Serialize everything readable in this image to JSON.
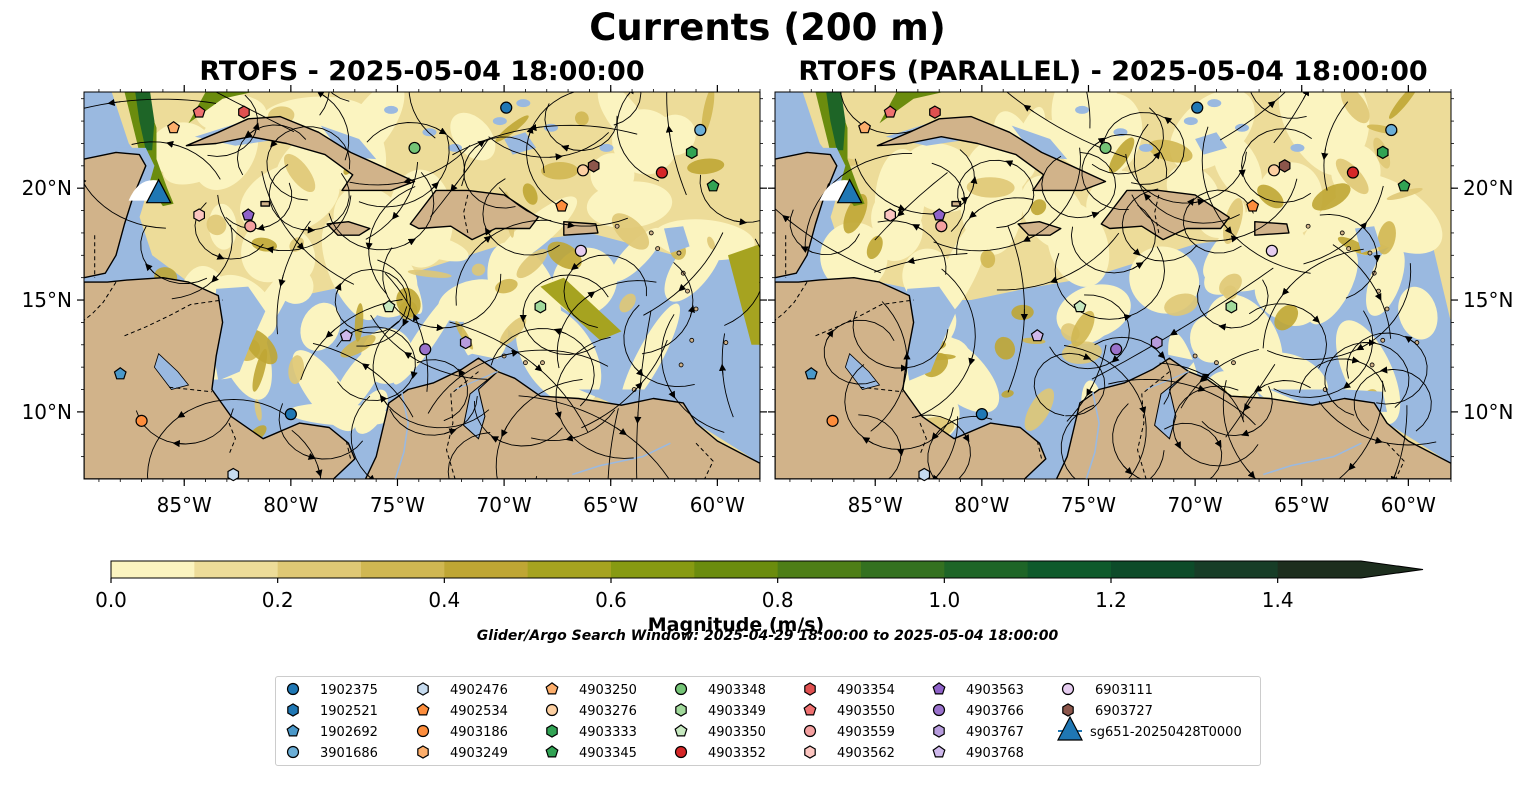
{
  "title": "Currents (200 m)",
  "panels": [
    {
      "title": "RTOFS - 2025-05-04 18:00:00"
    },
    {
      "title": "RTOFS (PARALLEL) - 2025-05-04 18:00:00"
    }
  ],
  "axes": {
    "x_ticks": [
      "85°W",
      "80°W",
      "75°W",
      "70°W",
      "65°W",
      "60°W"
    ],
    "x_tick_values": [
      -85,
      -80,
      -75,
      -70,
      -65,
      -60
    ],
    "y_ticks": [
      "20°N",
      "15°N",
      "10°N"
    ],
    "y_tick_values": [
      20,
      15,
      10
    ],
    "lon_range": [
      -89.7,
      -58.0
    ],
    "lat_range": [
      7.0,
      24.3
    ]
  },
  "colorbar": {
    "label": "Magnitude (m/s)",
    "tick_labels": [
      "0.0",
      "0.2",
      "0.4",
      "0.6",
      "0.8",
      "1.0",
      "1.2",
      "1.4"
    ],
    "range": [
      0,
      1.5
    ],
    "extend": "max",
    "colors": [
      "#fbf4c0",
      "#eddc99",
      "#dfc875",
      "#d0b752",
      "#bfa634",
      "#a6a320",
      "#879a12",
      "#6b8c0e",
      "#4e7e17",
      "#347120",
      "#1e6527",
      "#0e5a2b",
      "#0d4b29",
      "#173d27",
      "#1d2e1e"
    ]
  },
  "note": "Glider/Argo Search Window: 2025-04-29 18:00:00 to 2025-05-04 18:00:00",
  "colors": {
    "land": "#d1b38a",
    "ocean": "#9ab9e0"
  },
  "chart_data": {
    "type": "scatter",
    "series": [
      {
        "name": "1902375",
        "color": "#1f77b4",
        "marker": "circle",
        "points": [
          [
            -69.9,
            23.6
          ],
          [
            -80.0,
            9.9
          ]
        ]
      },
      {
        "name": "1902521",
        "color": "#1f77b4",
        "marker": "hexagon",
        "points": []
      },
      {
        "name": "1902692",
        "color": "#4a98c9",
        "marker": "pentagon",
        "points": [
          [
            -88.0,
            11.7
          ]
        ]
      },
      {
        "name": "3901686",
        "color": "#6baed6",
        "marker": "circle",
        "points": [
          [
            -60.8,
            22.6
          ]
        ]
      },
      {
        "name": "4902476",
        "color": "#c6dbef",
        "marker": "hexagon",
        "points": [
          [
            -82.7,
            7.2
          ]
        ]
      },
      {
        "name": "4902534",
        "color": "#fd8d3c",
        "marker": "pentagon",
        "points": [
          [
            -67.3,
            19.2
          ]
        ]
      },
      {
        "name": "4903186",
        "color": "#fd8d3c",
        "marker": "circle",
        "points": [
          [
            -87.0,
            9.6
          ]
        ]
      },
      {
        "name": "4903249",
        "color": "#fdae6b",
        "marker": "hexagon",
        "points": []
      },
      {
        "name": "4903250",
        "color": "#fdae6b",
        "marker": "pentagon",
        "points": [
          [
            -85.5,
            22.7
          ]
        ]
      },
      {
        "name": "4903276",
        "color": "#fdd0a2",
        "marker": "circle",
        "points": [
          [
            -66.3,
            20.8
          ]
        ]
      },
      {
        "name": "4903333",
        "color": "#31a354",
        "marker": "hexagon",
        "points": [
          [
            -61.2,
            21.6
          ]
        ]
      },
      {
        "name": "4903345",
        "color": "#31a354",
        "marker": "pentagon",
        "points": [
          [
            -60.2,
            20.1
          ]
        ]
      },
      {
        "name": "4903348",
        "color": "#74c476",
        "marker": "circle",
        "points": [
          [
            -74.2,
            21.8
          ]
        ]
      },
      {
        "name": "4903349",
        "color": "#a1d99b",
        "marker": "hexagon",
        "points": [
          [
            -68.3,
            14.7
          ]
        ]
      },
      {
        "name": "4903350",
        "color": "#c7e9c0",
        "marker": "pentagon",
        "points": [
          [
            -75.4,
            14.7
          ]
        ]
      },
      {
        "name": "4903352",
        "color": "#d62728",
        "marker": "circle",
        "points": [
          [
            -62.6,
            20.7
          ]
        ]
      },
      {
        "name": "4903354",
        "color": "#e05050",
        "marker": "hexagon",
        "points": [
          [
            -82.2,
            23.4
          ]
        ]
      },
      {
        "name": "4903550",
        "color": "#ef7070",
        "marker": "pentagon",
        "points": [
          [
            -84.3,
            23.4
          ]
        ]
      },
      {
        "name": "4903559",
        "color": "#f4a0a0",
        "marker": "circle",
        "points": [
          [
            -81.9,
            18.3
          ]
        ]
      },
      {
        "name": "4903562",
        "color": "#fcc5c0",
        "marker": "hexagon",
        "points": [
          [
            -84.3,
            18.8
          ]
        ]
      },
      {
        "name": "4903563",
        "color": "#8f62c9",
        "marker": "pentagon",
        "points": [
          [
            -82.0,
            18.8
          ]
        ]
      },
      {
        "name": "4903766",
        "color": "#9a72cc",
        "marker": "circle",
        "points": [
          [
            -73.7,
            12.8
          ]
        ]
      },
      {
        "name": "4903767",
        "color": "#b79cdd",
        "marker": "hexagon",
        "points": [
          [
            -71.8,
            13.1
          ]
        ]
      },
      {
        "name": "4903768",
        "color": "#cfb9ec",
        "marker": "pentagon",
        "points": [
          [
            -77.4,
            13.4
          ]
        ]
      },
      {
        "name": "6903111",
        "color": "#e6cdf0",
        "marker": "circle",
        "points": [
          [
            -66.4,
            17.2
          ]
        ]
      },
      {
        "name": "6903727",
        "color": "#8c564b",
        "marker": "hexagon",
        "points": [
          [
            -65.8,
            21.0
          ]
        ]
      },
      {
        "name": "sg651-20250428T0000",
        "color": "#1f77b4",
        "marker": "triangle",
        "points": [
          [
            -86.2,
            19.8
          ]
        ]
      }
    ]
  },
  "legend_entries": [
    {
      "label": "1902375"
    },
    {
      "label": "1902521"
    },
    {
      "label": "1902692"
    },
    {
      "label": "3901686"
    },
    {
      "label": "4902476"
    },
    {
      "label": "4902534"
    },
    {
      "label": "4903186"
    },
    {
      "label": "4903249"
    },
    {
      "label": "4903250"
    },
    {
      "label": "4903276"
    },
    {
      "label": "4903333"
    },
    {
      "label": "4903345"
    },
    {
      "label": "4903348"
    },
    {
      "label": "4903349"
    },
    {
      "label": "4903350"
    },
    {
      "label": "4903352"
    },
    {
      "label": "4903354"
    },
    {
      "label": "4903550"
    },
    {
      "label": "4903559"
    },
    {
      "label": "4903562"
    },
    {
      "label": "4903563"
    },
    {
      "label": "4903766"
    },
    {
      "label": "4903767"
    },
    {
      "label": "4903768"
    },
    {
      "label": "6903111"
    },
    {
      "label": "6903727"
    },
    {
      "label": "sg651-20250428T0000"
    }
  ]
}
